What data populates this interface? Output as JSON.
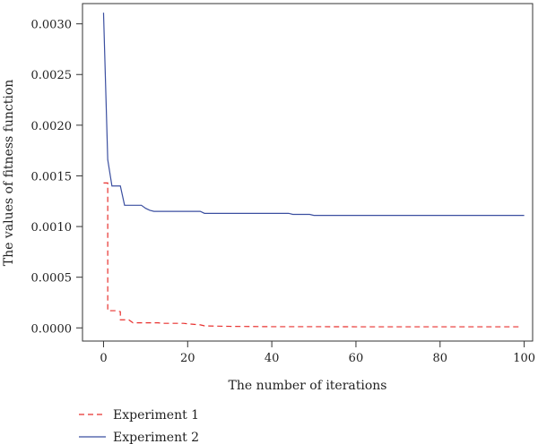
{
  "chart_data": {
    "type": "line",
    "title": "",
    "xlabel": "The number of iterations",
    "ylabel": "The values of fitness function",
    "xlim": [
      -5,
      102
    ],
    "ylim": [
      -0.00013,
      0.0032
    ],
    "xticks": [
      0,
      20,
      40,
      60,
      80,
      100
    ],
    "xtick_labels": [
      "0",
      "20",
      "40",
      "60",
      "80",
      "100"
    ],
    "yticks": [
      0.0,
      0.0005,
      0.001,
      0.0015,
      0.002,
      0.0025,
      0.003
    ],
    "ytick_labels": [
      "0.0000",
      "0.0005",
      "0.0010",
      "0.0015",
      "0.0020",
      "0.0025",
      "0.0030"
    ],
    "grid": false,
    "legend_position": "bottom-left",
    "series": [
      {
        "name": "Experiment 1",
        "color": "#e8312f",
        "dash": "dashed",
        "x": [
          0,
          1,
          1,
          3,
          4,
          4,
          5,
          6,
          7,
          8,
          13,
          14,
          19,
          20,
          23,
          24,
          30,
          40,
          50,
          60,
          70,
          80,
          90,
          99
        ],
        "y": [
          0.00143,
          0.00143,
          0.00017,
          0.00017,
          0.00016,
          8e-05,
          8e-05,
          8e-05,
          5e-05,
          5e-05,
          5e-05,
          4.5e-05,
          4.5e-05,
          4e-05,
          3e-05,
          2e-05,
          1.5e-05,
          1.2e-05,
          1.2e-05,
          1.1e-05,
          1.1e-05,
          1.1e-05,
          1.1e-05,
          1.1e-05
        ]
      },
      {
        "name": "Experiment 2",
        "color": "#3b4fa0",
        "dash": "solid",
        "x": [
          0,
          1,
          2,
          4,
          5,
          9,
          10,
          11,
          12,
          23,
          24,
          44,
          45,
          49,
          50,
          51,
          100
        ],
        "y": [
          0.00311,
          0.00166,
          0.0014,
          0.0014,
          0.00121,
          0.00121,
          0.00118,
          0.00116,
          0.00115,
          0.00115,
          0.00113,
          0.00113,
          0.00112,
          0.00112,
          0.00111,
          0.00111,
          0.00111
        ]
      }
    ]
  }
}
